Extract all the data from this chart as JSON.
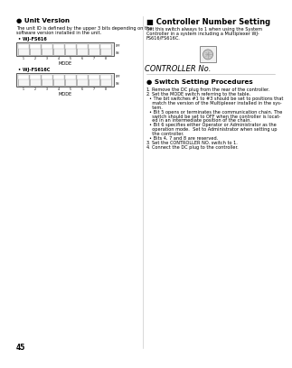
{
  "page_number": "45",
  "bg_color": "#ffffff",
  "left_section": {
    "title": "● Unit Version",
    "body1": "The unit ID is defined by the upper 3 bits depending on the",
    "body2": "software version installed in the unit.",
    "model1": "• WJ-FS616",
    "model2": "• WJ-FS616C",
    "switch_label": "MODE",
    "switch_ticks": [
      "1",
      "2",
      "3",
      "4",
      "5",
      "6",
      "7",
      "8"
    ],
    "switch_off_label": "OFF",
    "switch_on_label": "ON"
  },
  "right_section": {
    "title": "■ Controller Number Setting",
    "body": [
      "Set this switch always to 1 when using the System",
      "Controller in a system including a Multiplexer WJ-",
      "FS616/FS616C."
    ],
    "controller_label": "CONTROLLER No.",
    "switch_title": "● Switch Setting Procedures",
    "step1": "Remove the DC plug from the rear of the controller.",
    "step2_head": "Set the MODE switch referring to the table.",
    "step2_bullets": [
      "• The bit switches #1 to #3 should be set to positions that",
      "  match the version of the Multiplexer installed in the sys-",
      "  tem.",
      "• Bit 5 opens or terminates the communication chain. The",
      "  switch should be set to OFF when the controller is locat-",
      "  ed in an intermediate position of the chain.",
      "• Bit 6 specifies either Operator or Administrator as the",
      "  operation mode.  Set to Administrator when setting up",
      "  the controller.",
      "• Bits 4, 7 and 8 are reserved."
    ],
    "step3": "Set the CONTROLLER NO. switch to 1.",
    "step4": "Connect the DC plug to the controller."
  },
  "title_fontsize": 5.2,
  "body_fontsize": 3.6,
  "text_color": "#000000"
}
